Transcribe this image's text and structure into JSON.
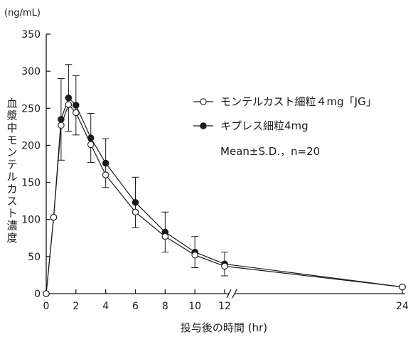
{
  "chart_data": {
    "type": "line",
    "title": "",
    "y_unit": "(ng/mL)",
    "ylabel": "血漿中モンテルカスト濃度",
    "xlabel": "投与後の時間 (hr)",
    "xlim": [
      0,
      24
    ],
    "ylim": [
      0,
      350
    ],
    "x_ticks": [
      0,
      2,
      4,
      6,
      8,
      10,
      12,
      24
    ],
    "y_ticks": [
      0,
      50,
      100,
      150,
      200,
      250,
      300,
      350
    ],
    "x_break_between": [
      12,
      24
    ],
    "legend_position": "top-right",
    "annotation": "Mean±S.D.，n=20",
    "series": [
      {
        "name": "モンテルカスト細粒４mg「JG」",
        "marker": "open-circle",
        "color": "#1a1a1a",
        "points": [
          {
            "x": 0,
            "y": 0
          },
          {
            "x": 0.5,
            "y": 103
          },
          {
            "x": 1,
            "y": 227
          },
          {
            "x": 1.5,
            "y": 255
          },
          {
            "x": 2,
            "y": 244
          },
          {
            "x": 3,
            "y": 201
          },
          {
            "x": 4,
            "y": 160
          },
          {
            "x": 6,
            "y": 110
          },
          {
            "x": 8,
            "y": 77
          },
          {
            "x": 10,
            "y": 52
          },
          {
            "x": 12,
            "y": 37
          },
          {
            "x": 24,
            "y": 9
          }
        ]
      },
      {
        "name": "キプレス細粒4mg",
        "marker": "filled-circle",
        "color": "#1a1a1a",
        "points": [
          {
            "x": 0,
            "y": 0
          },
          {
            "x": 0.5,
            "y": 103
          },
          {
            "x": 1,
            "y": 235,
            "sd": 55
          },
          {
            "x": 1.5,
            "y": 264,
            "sd": 45
          },
          {
            "x": 2,
            "y": 254,
            "sd": 40
          },
          {
            "x": 3,
            "y": 210,
            "sd": 33
          },
          {
            "x": 4,
            "y": 176,
            "sd": 33
          },
          {
            "x": 6,
            "y": 123,
            "sd": 34
          },
          {
            "x": 8,
            "y": 83,
            "sd": 27
          },
          {
            "x": 10,
            "y": 56,
            "sd": 21
          },
          {
            "x": 12,
            "y": 40,
            "sd": 16
          },
          {
            "x": 24,
            "y": 9
          }
        ]
      }
    ]
  }
}
